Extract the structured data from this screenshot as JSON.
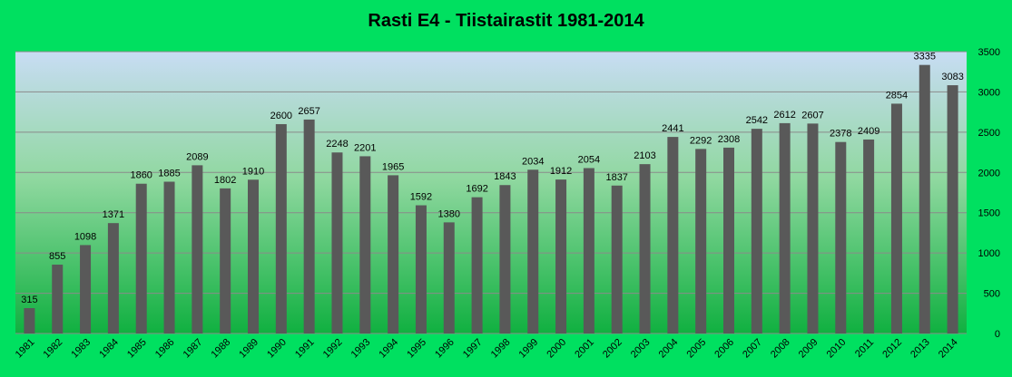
{
  "chart_data": {
    "type": "bar",
    "title": "Rasti E4 - Tiistairastit 1981-2014",
    "xlabel": "",
    "ylabel": "",
    "categories": [
      "1981",
      "1982",
      "1983",
      "1984",
      "1985",
      "1986",
      "1987",
      "1988",
      "1989",
      "1990",
      "1991",
      "1992",
      "1993",
      "1994",
      "1995",
      "1996",
      "1997",
      "1998",
      "1999",
      "2000",
      "2001",
      "2002",
      "2003",
      "2004",
      "2005",
      "2006",
      "2007",
      "2008",
      "2009",
      "2010",
      "2011",
      "2012",
      "2013",
      "2014"
    ],
    "values": [
      315,
      855,
      1098,
      1371,
      1860,
      1885,
      2089,
      1802,
      1910,
      2600,
      2657,
      2248,
      2201,
      1965,
      1592,
      1380,
      1692,
      1843,
      2034,
      1912,
      2054,
      1837,
      2103,
      2441,
      2292,
      2308,
      2542,
      2612,
      2607,
      2378,
      2409,
      2854,
      3335,
      3083
    ],
    "ylim": [
      0,
      3500
    ],
    "yticks": [
      0,
      500,
      1000,
      1500,
      2000,
      2500,
      3000,
      3500
    ],
    "y_axis_side": "right",
    "grid": true,
    "legend": "none",
    "data_labels": true,
    "colors": {
      "outer_background": "#00e060",
      "plot_top": "#c8dcf4",
      "plot_bottom": "#10b040",
      "bar": "#595959",
      "gridline": "#8a8a8a"
    }
  }
}
